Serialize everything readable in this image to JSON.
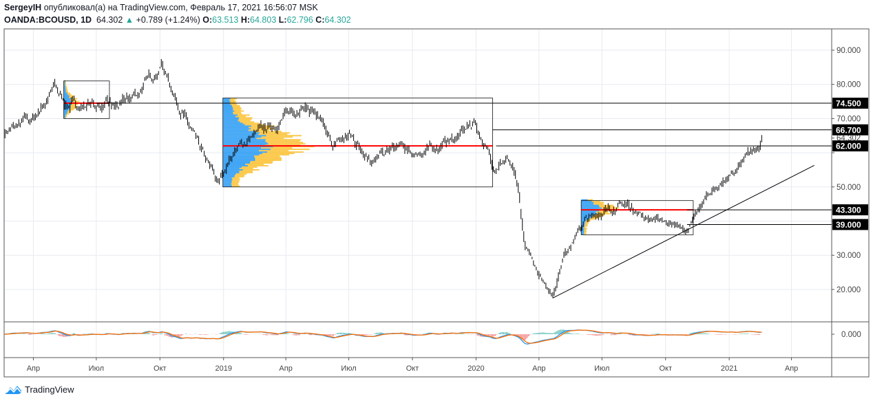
{
  "header": {
    "line1_user": "SergeyIH",
    "line1_rest": "опубликовал(а) на TradingView.com, Февраль 17, 2021 16:56:07 MSK",
    "symbol": "OANDA:BCOUSD, 1D",
    "last": "64.302",
    "change": "+0.789 (+1.24%)",
    "o_label": "O:",
    "o": "63.513",
    "h_label": "H:",
    "h": "64.803",
    "l_label": "L:",
    "l": "62.796",
    "c_label": "C:",
    "c": "64.302"
  },
  "logo": {
    "text": "TradingView"
  },
  "colors": {
    "up": "#26a69a",
    "macd": "#2196f3",
    "signal": "#ff6d00",
    "poc": "#ff0000",
    "vp_blue": "#2196f3",
    "vp_yellow": "#fbc02d"
  },
  "chart_data": {
    "type": "candlestick",
    "symbol": "OANDA:BCOUSD",
    "interval": "1D",
    "ylim": [
      10,
      100
    ],
    "y_ticks": [
      20,
      30,
      40,
      50,
      60,
      70,
      80,
      90
    ],
    "y_tick_labels": [
      "20.000",
      "30.000",
      "",
      "50.000",
      "",
      "70.000",
      "80.000",
      "90.000"
    ],
    "x_ticks": [
      {
        "date": "2018-04-01",
        "label": "Апр"
      },
      {
        "date": "2018-07-01",
        "label": "Июл"
      },
      {
        "date": "2018-10-01",
        "label": "Окт"
      },
      {
        "date": "2019-01-01",
        "label": "2019"
      },
      {
        "date": "2019-04-01",
        "label": "Апр"
      },
      {
        "date": "2019-07-01",
        "label": "Июл"
      },
      {
        "date": "2019-10-01",
        "label": "Окт"
      },
      {
        "date": "2020-01-01",
        "label": "2020"
      },
      {
        "date": "2020-04-01",
        "label": "Апр"
      },
      {
        "date": "2020-07-01",
        "label": "Июл"
      },
      {
        "date": "2020-10-01",
        "label": "Окт"
      },
      {
        "date": "2021-01-01",
        "label": "2021"
      },
      {
        "date": "2021-04-01",
        "label": "Апр"
      }
    ],
    "close_path": [
      [
        "2018-02-18",
        66
      ],
      [
        "2018-04-01",
        70
      ],
      [
        "2018-05-01",
        79
      ],
      [
        "2018-05-20",
        74
      ],
      [
        "2018-07-01",
        74
      ],
      [
        "2018-08-01",
        73
      ],
      [
        "2018-09-01",
        78
      ],
      [
        "2018-10-03",
        86
      ],
      [
        "2018-11-06",
        70
      ],
      [
        "2018-12-05",
        58
      ],
      [
        "2018-12-24",
        51
      ],
      [
        "2019-01-14",
        60
      ],
      [
        "2019-02-12",
        65
      ],
      [
        "2019-03-14",
        68
      ],
      [
        "2019-04-03",
        71
      ],
      [
        "2019-04-23",
        74
      ],
      [
        "2019-05-12",
        72
      ],
      [
        "2019-06-06",
        62
      ],
      [
        "2019-07-01",
        65
      ],
      [
        "2019-08-05",
        58
      ],
      [
        "2019-09-14",
        62
      ],
      [
        "2019-09-29",
        59
      ],
      [
        "2019-11-07",
        62
      ],
      [
        "2019-12-07",
        65
      ],
      [
        "2019-12-30",
        69
      ],
      [
        "2020-01-26",
        56
      ],
      [
        "2020-02-15",
        58
      ],
      [
        "2020-03-01",
        50
      ],
      [
        "2020-03-11",
        33
      ],
      [
        "2020-03-31",
        25
      ],
      [
        "2020-04-21",
        18
      ],
      [
        "2020-05-06",
        30
      ],
      [
        "2020-06-05",
        40
      ],
      [
        "2020-07-05",
        43
      ],
      [
        "2020-08-04",
        45
      ],
      [
        "2020-09-03",
        41
      ],
      [
        "2020-10-03",
        40
      ],
      [
        "2020-11-02",
        37
      ],
      [
        "2020-11-20",
        44
      ],
      [
        "2020-12-05",
        49
      ],
      [
        "2021-01-03",
        53
      ],
      [
        "2021-02-03",
        60
      ],
      [
        "2021-02-17",
        64.302
      ]
    ],
    "last_price": {
      "value": 64.302,
      "label": "64.302"
    },
    "levels": [
      {
        "value": 74.5,
        "label": "74.500",
        "from": "2018-07-01"
      },
      {
        "value": 66.7,
        "label": "66.700",
        "from": "2020-01-25"
      },
      {
        "value": 62.0,
        "label": "62.000",
        "from": "2020-01-30"
      },
      {
        "value": 43.3,
        "label": "43.300",
        "from": "2020-11-01"
      },
      {
        "value": 39.0,
        "label": "39.000",
        "from": "2020-11-01"
      }
    ],
    "trendline": {
      "from": [
        "2020-04-21",
        17.5
      ],
      "to": [
        "2021-05-04",
        56.3
      ]
    },
    "volume_profiles": [
      {
        "from": "2018-05-15",
        "to": "2018-07-20",
        "low": 70,
        "high": 81,
        "poc": 74.5
      },
      {
        "from": "2018-12-31",
        "to": "2020-01-25",
        "low": 50,
        "high": 76,
        "poc": 62
      },
      {
        "from": "2020-06-01",
        "to": "2020-11-10",
        "low": 36,
        "high": 46,
        "poc": 43.3
      }
    ],
    "indicator": {
      "name": "MACD",
      "zero_label": "0.000"
    }
  }
}
